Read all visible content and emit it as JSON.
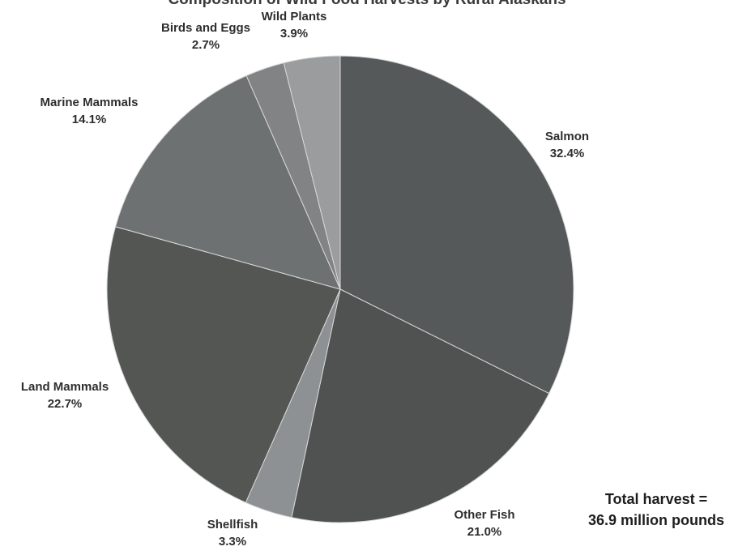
{
  "chart_data": {
    "type": "pie",
    "title": "Composition of Wild Food Harvests by Rural Alaskans",
    "slices": [
      {
        "label": "Salmon",
        "value": 32.4,
        "value_label": "32.4%",
        "color": "#55595a"
      },
      {
        "label": "Other Fish",
        "value": 21.0,
        "value_label": "21.0%",
        "color": "#4f5250"
      },
      {
        "label": "Shellfish",
        "value": 3.3,
        "value_label": "3.3%",
        "color": "#8e9193"
      },
      {
        "label": "Land Mammals",
        "value": 22.7,
        "value_label": "22.7%",
        "color": "#535653"
      },
      {
        "label": "Marine Mammals",
        "value": 14.1,
        "value_label": "14.1%",
        "color": "#6e7171"
      },
      {
        "label": "Birds and Eggs",
        "value": 2.7,
        "value_label": "2.7%",
        "color": "#818385"
      },
      {
        "label": "Wild Plants",
        "value": 3.9,
        "value_label": "3.9%",
        "color": "#9a9c9e"
      }
    ],
    "start_angle": "12 o'clock",
    "direction": "clockwise",
    "legend": "none"
  },
  "annotation": {
    "line1": "Total harvest =",
    "line2": "36.9 million pounds"
  }
}
